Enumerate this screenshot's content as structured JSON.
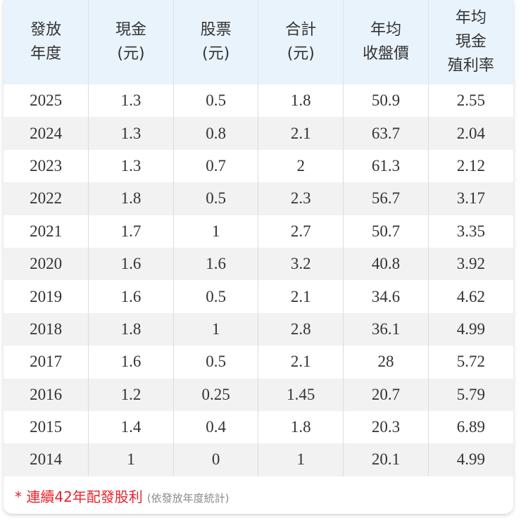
{
  "table": {
    "header": [
      [
        "發放",
        "年度"
      ],
      [
        "現金",
        "(元)"
      ],
      [
        "股票",
        "(元)"
      ],
      [
        "合計",
        "(元)"
      ],
      [
        "年均",
        "收盤價"
      ],
      [
        "年均",
        "現金",
        "殖利率"
      ]
    ],
    "rows": [
      [
        "2025",
        "1.3",
        "0.5",
        "1.8",
        "50.9",
        "2.55"
      ],
      [
        "2024",
        "1.3",
        "0.8",
        "2.1",
        "63.7",
        "2.04"
      ],
      [
        "2023",
        "1.3",
        "0.7",
        "2",
        "61.3",
        "2.12"
      ],
      [
        "2022",
        "1.8",
        "0.5",
        "2.3",
        "56.7",
        "3.17"
      ],
      [
        "2021",
        "1.7",
        "1",
        "2.7",
        "50.7",
        "3.35"
      ],
      [
        "2020",
        "1.6",
        "1.6",
        "3.2",
        "40.8",
        "3.92"
      ],
      [
        "2019",
        "1.6",
        "0.5",
        "2.1",
        "34.6",
        "4.62"
      ],
      [
        "2018",
        "1.8",
        "1",
        "2.8",
        "36.1",
        "4.99"
      ],
      [
        "2017",
        "1.6",
        "0.5",
        "2.1",
        "28",
        "5.72"
      ],
      [
        "2016",
        "1.2",
        "0.25",
        "1.45",
        "20.7",
        "5.79"
      ],
      [
        "2015",
        "1.4",
        "0.4",
        "1.8",
        "20.3",
        "6.89"
      ],
      [
        "2014",
        "1",
        "0",
        "1",
        "20.1",
        "4.99"
      ]
    ]
  },
  "footer": {
    "note": "* 連續42年配發股利",
    "source": "(依發放年度統計)"
  }
}
